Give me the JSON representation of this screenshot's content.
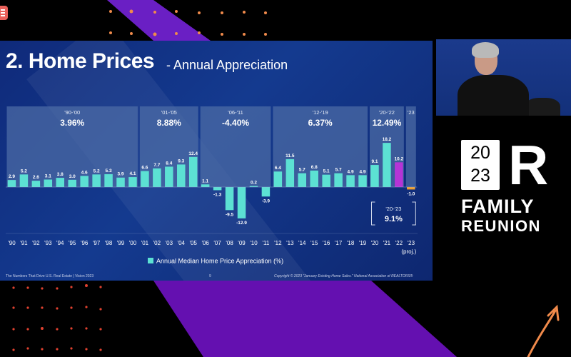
{
  "slide": {
    "title": "2. Home Prices",
    "subtitle": "- Annual Appreciation",
    "footer_left": "The Numbers That Drive U.S. Real Estate  |  Vision 2023",
    "page_number": "9",
    "footer_right": "Copyright © 2023 \"January Existing Home Sales.\" National Association of REALTORS®"
  },
  "logo": {
    "year_top": "20",
    "year_bottom": "23",
    "letter": "R",
    "line1": "FAMILY",
    "line2": "REUNION"
  },
  "colors": {
    "bar": "#5ce1d3",
    "bar_2022": "#b534d6",
    "bar_2023": "#f0a030",
    "slide_bg": "#12337f",
    "period_panel": "#4f6ea6"
  },
  "chart_data": {
    "type": "bar",
    "title": "2. Home Prices - Annual Appreciation",
    "xlabel": "",
    "ylabel": "",
    "legend": [
      "Annual Median Home Price Appreciation (%)"
    ],
    "legend_position": "bottom",
    "categories": [
      "'90",
      "'91",
      "'92",
      "'93",
      "'94",
      "'95",
      "'96",
      "'97",
      "'98",
      "'99",
      "'00",
      "'01",
      "'02",
      "'03",
      "'04",
      "'05",
      "'06",
      "'07",
      "'08",
      "'09",
      "'10",
      "'11",
      "'12",
      "'13",
      "'14",
      "'15",
      "'16",
      "'17",
      "'18",
      "'19",
      "'20",
      "'21",
      "'22",
      "'23"
    ],
    "category_note": {
      "'23": "(proj.)"
    },
    "values": [
      2.9,
      5.2,
      2.6,
      3.1,
      3.8,
      3.0,
      4.6,
      5.2,
      5.3,
      3.9,
      4.1,
      6.6,
      7.7,
      8.4,
      9.3,
      12.4,
      1.1,
      -1.3,
      -9.5,
      -12.9,
      0.2,
      -3.9,
      6.4,
      11.5,
      5.7,
      6.8,
      5.1,
      5.7,
      4.9,
      4.9,
      9.1,
      18.2,
      10.2,
      -1.0
    ],
    "value_labels": [
      "2.9",
      "5.2",
      "2.6",
      "3.1",
      "3.8",
      "3.0",
      "4.6",
      "5.2",
      "5.3",
      "3.9",
      "4.1",
      "6.6",
      "7.7",
      "8.4",
      "9.3",
      "12.4",
      "1.1",
      "-1.3",
      "-9.5",
      "-12.9",
      "0.2",
      "-3.9",
      "6.4",
      "11.5",
      "5.7",
      "6.8",
      "5.1",
      "5.7",
      "4.9",
      "4.9",
      "9.1",
      "18.2",
      "10.2",
      "-1.0"
    ],
    "periods": [
      {
        "label": "'90-'00",
        "value": "3.96%",
        "start": 0,
        "end": 10
      },
      {
        "label": "'01-'05",
        "value": "8.88%",
        "start": 11,
        "end": 15
      },
      {
        "label": "'06-'11",
        "value": "-4.40%",
        "start": 16,
        "end": 21
      },
      {
        "label": "'12-'19",
        "value": "6.37%",
        "start": 22,
        "end": 29
      },
      {
        "label": "'20-'22",
        "value": "12.49%",
        "start": 30,
        "end": 32
      },
      {
        "label": "'23",
        "value": "",
        "start": 33,
        "end": 33
      }
    ],
    "annotation": {
      "label": "'20-'23",
      "value": "9.1%"
    },
    "ylim": [
      -14,
      33
    ],
    "grid": false
  }
}
